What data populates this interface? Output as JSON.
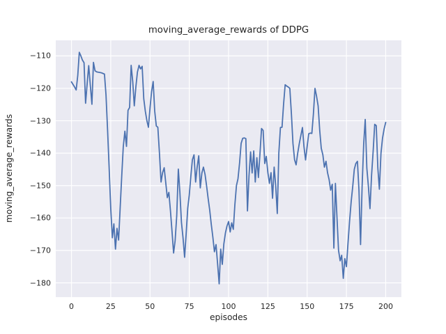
{
  "figure": {
    "background": "#ffffff"
  },
  "chart_data": {
    "type": "line",
    "title": "moving_average_rewards of DDPG",
    "xlabel": "episodes",
    "ylabel": "moving_average_rewards",
    "x_ticks": [
      0,
      25,
      50,
      75,
      100,
      125,
      150,
      175,
      200
    ],
    "y_ticks": [
      -110,
      -120,
      -130,
      -140,
      -150,
      -160,
      -170,
      -180
    ],
    "xlim": [
      -10,
      210
    ],
    "ylim": [
      -184.4,
      -105.2
    ],
    "grid": true,
    "legend_position": "none",
    "style": {
      "plot_background": "#eaeaf2",
      "grid_color": "#ffffff",
      "line_color": "#4c72b0",
      "text_color": "#262626",
      "line_width": 1.8
    },
    "series": [
      {
        "name": "moving_average_rewards",
        "x_start": 0,
        "x_step": 1,
        "values": [
          -118.0,
          -118.8,
          -119.6,
          -120.5,
          -116.0,
          -108.9,
          -110.0,
          -111.3,
          -112.1,
          -124.6,
          -118.5,
          -113.0,
          -119.0,
          -124.9,
          -112.0,
          -114.6,
          -114.9,
          -115.0,
          -115.1,
          -115.2,
          -115.4,
          -115.6,
          -122.0,
          -133.0,
          -145.0,
          -157.0,
          -166.1,
          -161.8,
          -169.6,
          -163.2,
          -166.8,
          -157.0,
          -147.0,
          -138.0,
          -133.2,
          -137.9,
          -126.8,
          -125.9,
          -112.9,
          -118.0,
          -125.4,
          -119.5,
          -115.0,
          -112.9,
          -114.0,
          -113.2,
          -123.2,
          -127.0,
          -130.0,
          -132.0,
          -126.0,
          -121.0,
          -117.9,
          -127.0,
          -131.6,
          -132.0,
          -140.0,
          -148.9,
          -146.0,
          -144.5,
          -149.0,
          -153.7,
          -152.1,
          -157.8,
          -164.0,
          -170.8,
          -167.0,
          -159.3,
          -144.9,
          -152.0,
          -161.4,
          -166.0,
          -172.1,
          -165.0,
          -157.0,
          -152.9,
          -147.0,
          -142.0,
          -140.5,
          -148.9,
          -144.3,
          -140.8,
          -150.7,
          -146.1,
          -144.3,
          -146.5,
          -150.0,
          -154.0,
          -157.5,
          -162.0,
          -166.0,
          -170.4,
          -168.2,
          -174.0,
          -180.3,
          -169.6,
          -174.3,
          -168.0,
          -164.6,
          -162.5,
          -161.1,
          -164.3,
          -161.5,
          -163.5,
          -156.0,
          -150.0,
          -147.9,
          -143.0,
          -137.0,
          -135.4,
          -135.3,
          -135.5,
          -157.8,
          -147.0,
          -139.6,
          -146.1,
          -139.3,
          -148.9,
          -141.4,
          -147.5,
          -140.0,
          -132.4,
          -133.0,
          -143.2,
          -141.0,
          -146.0,
          -149.3,
          -146.0,
          -153.9,
          -144.3,
          -150.0,
          -158.6,
          -140.0,
          -132.1,
          -132.0,
          -125.0,
          -118.9,
          -119.3,
          -119.6,
          -120.0,
          -128.0,
          -137.0,
          -142.0,
          -143.6,
          -140.0,
          -137.0,
          -134.6,
          -132.1,
          -138.0,
          -142.1,
          -138.0,
          -134.0,
          -133.8,
          -133.9,
          -128.0,
          -120.0,
          -122.5,
          -125.4,
          -133.0,
          -138.5,
          -140.5,
          -144.3,
          -142.5,
          -146.0,
          -148.2,
          -151.4,
          -149.6,
          -169.3,
          -149.3,
          -160.0,
          -170.0,
          -173.2,
          -171.5,
          -178.6,
          -172.5,
          -175.0,
          -168.0,
          -161.1,
          -155.0,
          -150.4,
          -145.0,
          -143.2,
          -142.5,
          -151.4,
          -168.2,
          -150.4,
          -137.1,
          -129.6,
          -144.6,
          -150.4,
          -157.1,
          -146.8,
          -139.6,
          -131.1,
          -131.5,
          -144.6,
          -151.1,
          -140.0,
          -135.4,
          -132.5,
          -130.5
        ]
      }
    ]
  }
}
